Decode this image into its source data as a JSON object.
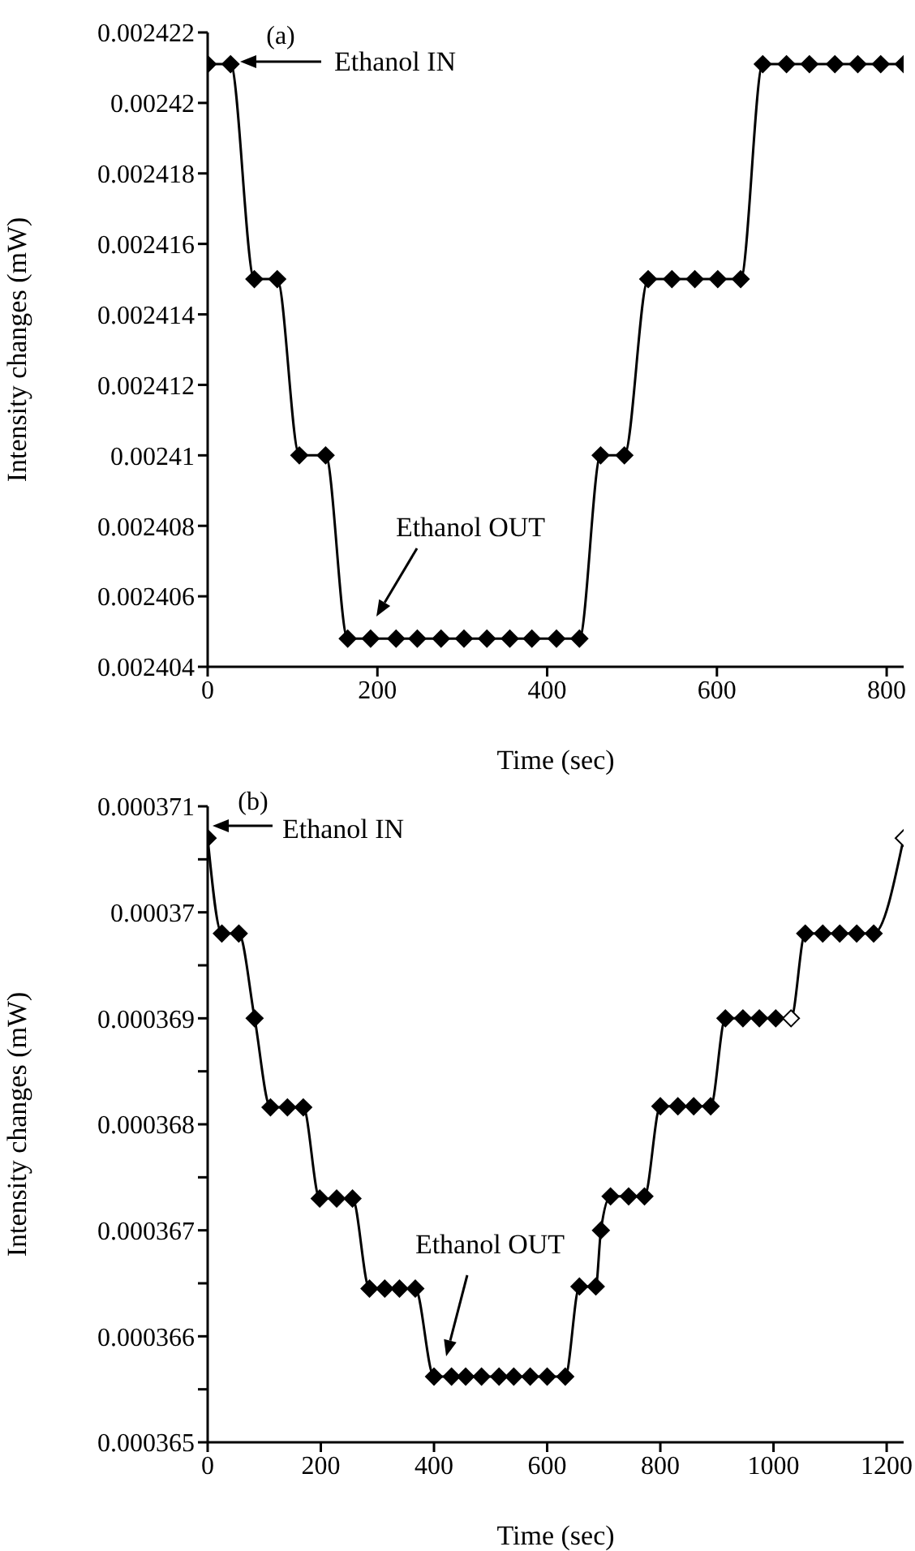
{
  "chart_data": [
    {
      "type": "line",
      "title": "(a)",
      "xlabel": "Time (sec)",
      "ylabel": "Intensity changes (mW)",
      "x": [
        0,
        27,
        55,
        82,
        108,
        139,
        165,
        192,
        222,
        247,
        275,
        302,
        329,
        356,
        382,
        411,
        438,
        463,
        491,
        519,
        547,
        574,
        601,
        628,
        654,
        682,
        709,
        739,
        766,
        793,
        820
      ],
      "series": [
        {
          "color": "#000000",
          "values": [
            0.0024211,
            0.0024211,
            0.002415,
            0.002415,
            0.00241,
            0.00241,
            0.0024048,
            0.0024048,
            0.0024048,
            0.0024048,
            0.0024048,
            0.0024048,
            0.0024048,
            0.0024048,
            0.0024048,
            0.0024048,
            0.0024048,
            0.00241,
            0.00241,
            0.002415,
            0.002415,
            0.002415,
            0.002415,
            0.002415,
            0.0024211,
            0.0024211,
            0.0024211,
            0.0024211,
            0.0024211,
            0.0024211,
            0.0024211
          ]
        }
      ],
      "xlim": [
        0,
        820
      ],
      "xticks": [
        0,
        200,
        400,
        600,
        800
      ],
      "ylim": [
        0.002404,
        0.002422
      ],
      "yticks": [
        0.002404,
        0.002406,
        0.002408,
        0.00241,
        0.002412,
        0.002414,
        0.002416,
        0.002418,
        0.00242,
        0.002422
      ],
      "annotations": [
        "Ethanol IN",
        "Ethanol OUT"
      ],
      "grid": false,
      "marker": "diamond",
      "line_style": "solid"
    },
    {
      "type": "line",
      "title": "(b)",
      "xlabel": "Time (sec)",
      "ylabel": "Intensity changes (mW)",
      "x": [
        0,
        25,
        55,
        83,
        111,
        141,
        169,
        198,
        228,
        256,
        286,
        313,
        339,
        367,
        400,
        431,
        456,
        484,
        515,
        541,
        570,
        600,
        632,
        657,
        686,
        695,
        712,
        744,
        772,
        800,
        831,
        859,
        889,
        915,
        946,
        975,
        1004,
        1031,
        1056,
        1087,
        1117,
        1147,
        1177,
        1230
      ],
      "series": [
        {
          "color": "#000000",
          "values": [
            0.0003707,
            0.0003698,
            0.0003698,
            0.000369,
            0.00036816,
            0.00036816,
            0.00036816,
            0.0003673,
            0.0003673,
            0.0003673,
            0.00036645,
            0.00036645,
            0.00036645,
            0.00036645,
            0.00036562,
            0.00036562,
            0.00036562,
            0.00036562,
            0.00036562,
            0.00036562,
            0.00036562,
            0.00036562,
            0.00036562,
            0.00036647,
            0.00036647,
            0.000367,
            0.00036732,
            0.00036732,
            0.00036732,
            0.00036817,
            0.00036817,
            0.00036817,
            0.00036817,
            0.000369,
            0.000369,
            0.000369,
            0.000369,
            0.000369,
            0.0003698,
            0.0003698,
            0.0003698,
            0.0003698,
            0.0003698,
            0.0003707
          ],
          "colors": [
            "#000000",
            "#000000",
            "#000000",
            "#000000",
            "#000000",
            "#000000",
            "#000000",
            "#000000",
            "#000000",
            "#000000",
            "#000000",
            "#000000",
            "#000000",
            "#000000",
            "#000000",
            "#000000",
            "#000000",
            "#000000",
            "#000000",
            "#000000",
            "#000000",
            "#000000",
            "#000000",
            "#000000",
            "#000000",
            "#000000",
            "#000000",
            "#000000",
            "#000000",
            "#000000",
            "#000000",
            "#000000",
            "#000000",
            "#000000",
            "#000000",
            "#000000",
            "#000000",
            "#ffffff",
            "#000000",
            "#000000",
            "#000000",
            "#000000",
            "#000000",
            "#ffffff"
          ]
        }
      ],
      "xlim": [
        0,
        1230
      ],
      "xticks": [
        0,
        200,
        400,
        600,
        800,
        1000,
        1200
      ],
      "ylim": [
        0.000365,
        0.000371
      ],
      "yticks": [
        0.000365,
        {
          "value": 0.0003655,
          "label": null
        },
        0.000366,
        {
          "value": 0.0003665,
          "label": null
        },
        0.000367,
        {
          "value": 0.0003675,
          "label": null
        },
        0.000368,
        {
          "value": 0.0003685,
          "label": null
        },
        0.000369,
        {
          "value": 0.0003695,
          "label": null
        },
        0.00037,
        {
          "value": 0.0003705,
          "label": null
        },
        0.000371
      ],
      "annotations": [
        "Ethanol IN",
        "Ethanol OUT"
      ],
      "grid": false,
      "marker": "diamond",
      "line_style": "solid"
    }
  ]
}
